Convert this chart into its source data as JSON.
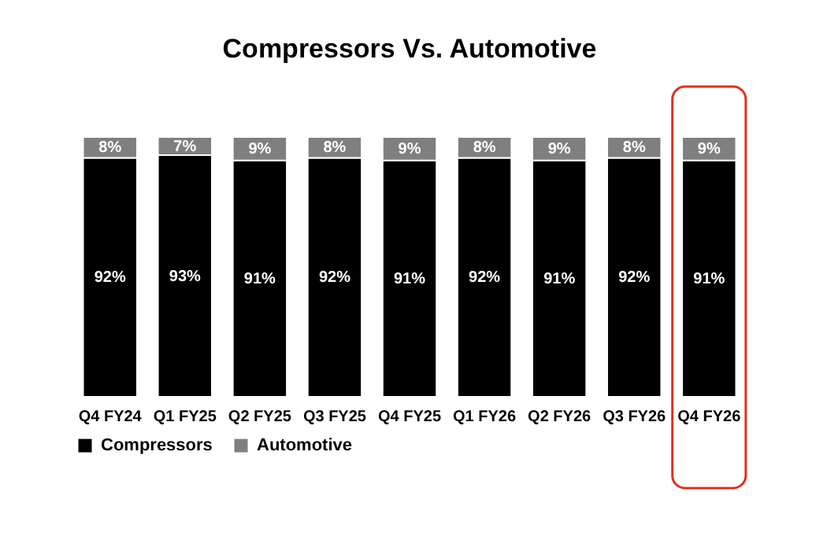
{
  "chart_data": {
    "type": "bar",
    "title": "Compressors Vs. Automotive",
    "stacked": true,
    "legend": "bottom",
    "categories": [
      "Q4 FY24",
      "Q1 FY25",
      "Q2 FY25",
      "Q3 FY25",
      "Q4 FY25",
      "Q1 FY26",
      "Q2 FY26",
      "Q3 FY26",
      "Q4 FY26"
    ],
    "series": [
      {
        "name": "Compressors",
        "color": "#000000",
        "values": [
          92,
          93,
          91,
          92,
          91,
          92,
          91,
          92,
          91
        ],
        "value_labels": [
          "92%",
          "93%",
          "91%",
          "92%",
          "91%",
          "92%",
          "91%",
          "92%",
          "91%"
        ]
      },
      {
        "name": "Automotive",
        "color": "#7f7f7f",
        "values": [
          8,
          7,
          9,
          8,
          9,
          8,
          9,
          8,
          9
        ],
        "value_labels": [
          "8%",
          "7%",
          "9%",
          "8%",
          "9%",
          "8%",
          "9%",
          "8%",
          "9%"
        ]
      }
    ]
  }
}
